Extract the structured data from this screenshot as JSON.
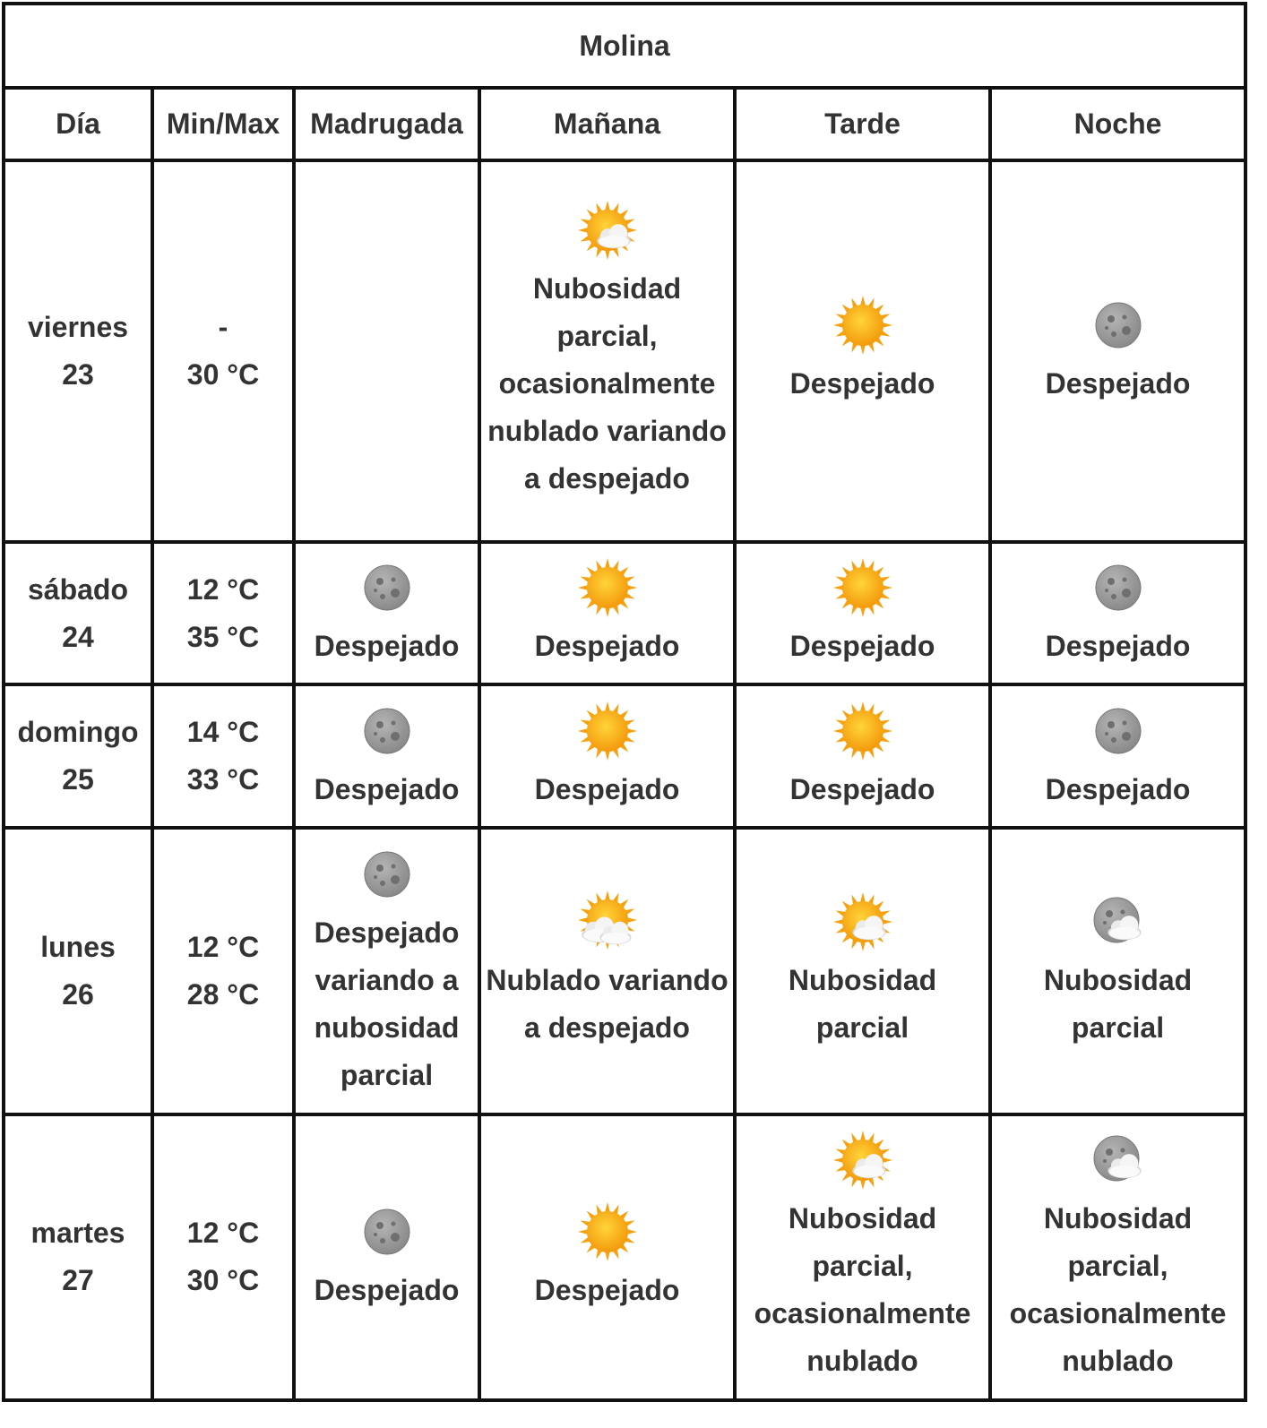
{
  "location": "Molina",
  "headers": {
    "day": "Día",
    "minmax": "Min/Max",
    "madrugada": "Madrugada",
    "manana": "Mañana",
    "tarde": "Tarde",
    "noche": "Noche"
  },
  "colors": {
    "border": "#111111",
    "text": "#333333",
    "sun": "#f7a10f",
    "moon": "#8a8a8a"
  },
  "rows": [
    {
      "day": "viernes",
      "date": "23",
      "min": "-",
      "max": "30 °C",
      "madrugada": {
        "icon": "",
        "desc": ""
      },
      "manana": {
        "icon": "sun-partly-cloudy-icon",
        "desc": "Nubosidad parcial, ocasionalmente nublado variando a despejado"
      },
      "tarde": {
        "icon": "sun-icon",
        "desc": "Despejado"
      },
      "noche": {
        "icon": "moon-icon",
        "desc": "Despejado"
      }
    },
    {
      "day": "sábado",
      "date": "24",
      "min": "12 °C",
      "max": "35 °C",
      "madrugada": {
        "icon": "moon-icon",
        "desc": "Despejado"
      },
      "manana": {
        "icon": "sun-icon",
        "desc": "Despejado"
      },
      "tarde": {
        "icon": "sun-icon",
        "desc": "Despejado"
      },
      "noche": {
        "icon": "moon-icon",
        "desc": "Despejado"
      }
    },
    {
      "day": "domingo",
      "date": "25",
      "min": "14 °C",
      "max": "33 °C",
      "madrugada": {
        "icon": "moon-icon",
        "desc": "Despejado"
      },
      "manana": {
        "icon": "sun-icon",
        "desc": "Despejado"
      },
      "tarde": {
        "icon": "sun-icon",
        "desc": "Despejado"
      },
      "noche": {
        "icon": "moon-icon",
        "desc": "Despejado"
      }
    },
    {
      "day": "lunes",
      "date": "26",
      "min": "12 °C",
      "max": "28 °C",
      "madrugada": {
        "icon": "moon-icon",
        "desc": "Despejado variando a nubosidad parcial"
      },
      "manana": {
        "icon": "sun-cloudy-icon",
        "desc": "Nublado variando a despejado"
      },
      "tarde": {
        "icon": "sun-partly-cloudy-icon",
        "desc": "Nubosidad parcial"
      },
      "noche": {
        "icon": "moon-partly-cloudy-icon",
        "desc": "Nubosidad parcial"
      }
    },
    {
      "day": "martes",
      "date": "27",
      "min": "12 °C",
      "max": "30 °C",
      "madrugada": {
        "icon": "moon-icon",
        "desc": "Despejado"
      },
      "manana": {
        "icon": "sun-icon",
        "desc": "Despejado"
      },
      "tarde": {
        "icon": "sun-partly-cloudy-icon",
        "desc": "Nubosidad parcial, ocasionalmente nublado"
      },
      "noche": {
        "icon": "moon-partly-cloudy-icon",
        "desc": "Nubosidad parcial, ocasionalmente nublado"
      }
    }
  ]
}
